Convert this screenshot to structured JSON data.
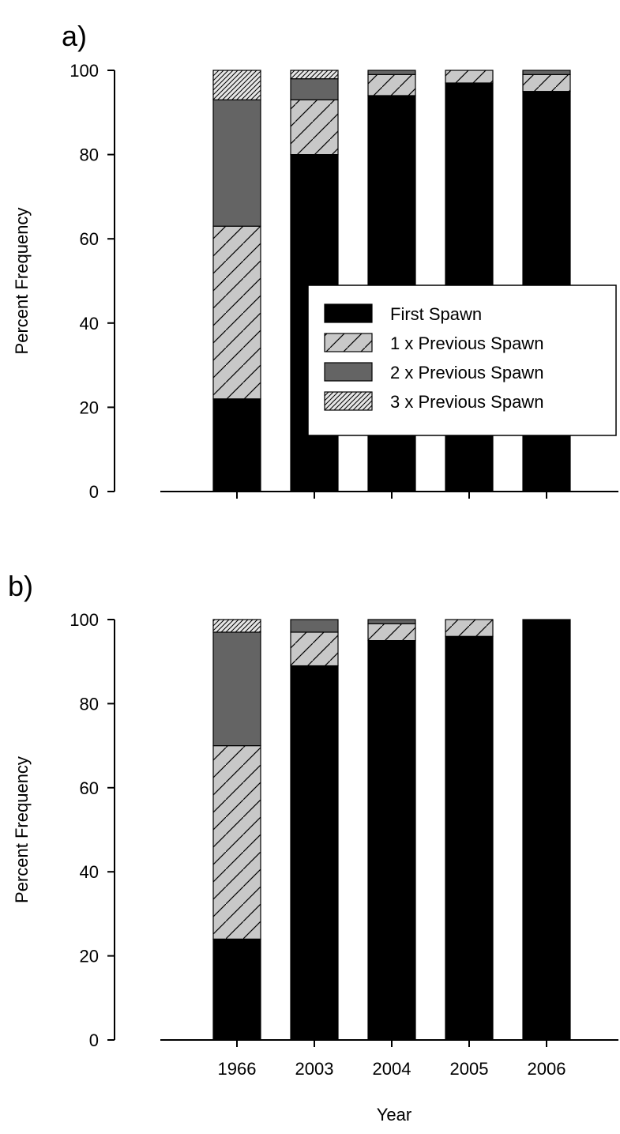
{
  "chart_data": [
    {
      "panel": "a)",
      "type": "bar",
      "stacked": true,
      "categories": [
        "1966",
        "2003",
        "2004",
        "2005",
        "2006"
      ],
      "show_x_tick_labels": false,
      "xlabel": "",
      "ylabel": "Percent Frequency",
      "ylim": [
        0,
        100
      ],
      "yticks": [
        0,
        20,
        40,
        60,
        80,
        100
      ],
      "grid": false,
      "legend": {
        "show": true,
        "placement": "center-right"
      },
      "series": [
        {
          "name": "First Spawn",
          "values": [
            22,
            80,
            94,
            97,
            95
          ]
        },
        {
          "name": "1 x Previous Spawn",
          "values": [
            41,
            13,
            5,
            3,
            4
          ]
        },
        {
          "name": "2 x Previous Spawn",
          "values": [
            30,
            5,
            1,
            0,
            1
          ]
        },
        {
          "name": "3 x Previous Spawn",
          "values": [
            7,
            2,
            0,
            0,
            0
          ]
        }
      ]
    },
    {
      "panel": "b)",
      "type": "bar",
      "stacked": true,
      "categories": [
        "1966",
        "2003",
        "2004",
        "2005",
        "2006"
      ],
      "show_x_tick_labels": true,
      "xlabel": "Year",
      "ylabel": "Percent Frequency",
      "ylim": [
        0,
        100
      ],
      "yticks": [
        0,
        20,
        40,
        60,
        80,
        100
      ],
      "grid": false,
      "legend": {
        "show": false
      },
      "series": [
        {
          "name": "First Spawn",
          "values": [
            24,
            89,
            95,
            96,
            100
          ]
        },
        {
          "name": "1 x Previous Spawn",
          "values": [
            46,
            8,
            4,
            4,
            0
          ]
        },
        {
          "name": "2 x Previous Spawn",
          "values": [
            27,
            3,
            1,
            0,
            0
          ]
        },
        {
          "name": "3 x Previous Spawn",
          "values": [
            3,
            0,
            0,
            0,
            0
          ]
        }
      ]
    }
  ],
  "series_styles": [
    {
      "fill": "#000000",
      "pattern": "none"
    },
    {
      "fill": "#c8c8c8",
      "pattern": "sparse-hatch"
    },
    {
      "fill": "#646464",
      "pattern": "none"
    },
    {
      "fill": "#e6e6e6",
      "pattern": "dense-hatch"
    }
  ]
}
